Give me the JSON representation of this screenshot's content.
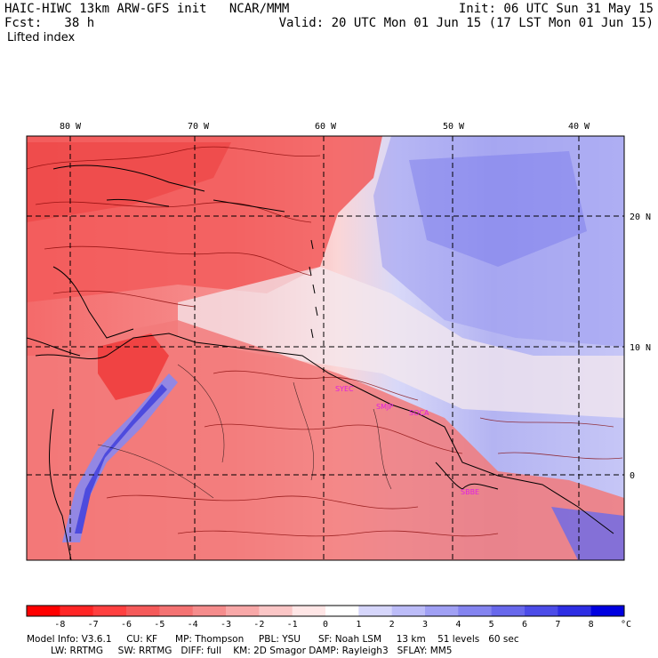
{
  "header": {
    "title_left": "HAIC-HIWC 13km ARW-GFS init   NCAR/MMM",
    "fcst": "Fcst:   38 h",
    "field": "Lifted index",
    "init": "Init: 06 UTC Sun 31 May 15",
    "valid": "Valid: 20 UTC Mon 01 Jun 15 (17 LST Mon 01 Jun 15)"
  },
  "map": {
    "lon_labels": [
      "80 W",
      "70 W",
      "60 W",
      "50 W",
      "40 W"
    ],
    "lat_labels": [
      "20 N",
      "10 N",
      "0"
    ],
    "station_labels": [
      "SYEC",
      "SMJP",
      "SOCA",
      "SBBE"
    ],
    "colors": {
      "negative": "#f06060",
      "positive": "#8080f0",
      "contour": "#800000",
      "coast": "#000000"
    }
  },
  "colorbar": {
    "labels": [
      "-8",
      "-7",
      "-6",
      "-5",
      "-4",
      "-3",
      "-2",
      "-1",
      "0",
      "1",
      "2",
      "3",
      "4",
      "5",
      "6",
      "7",
      "8"
    ],
    "unit": "°C",
    "colors": [
      "#ff0000",
      "#ff2525",
      "#ff4040",
      "#f55a5a",
      "#f47272",
      "#f58c8c",
      "#f8a8a8",
      "#fbc6c6",
      "#ffe6e6",
      "#ffffff",
      "#d6d6fb",
      "#bcbcf8",
      "#a0a0f4",
      "#8484f0",
      "#6868ec",
      "#4c4ce8",
      "#2e2ee4",
      "#0000e0"
    ]
  },
  "footer": {
    "line1": "Model Info: V3.6.1     CU: KF      MP: Thompson     PBL: YSU      SF: Noah LSM     13 km    51 levels   60 sec",
    "line2": "LW: RRTMG     SW: RRTMG   DIFF: full    KM: 2D Smagor DAMP: Rayleigh3   SFLAY: MM5"
  }
}
